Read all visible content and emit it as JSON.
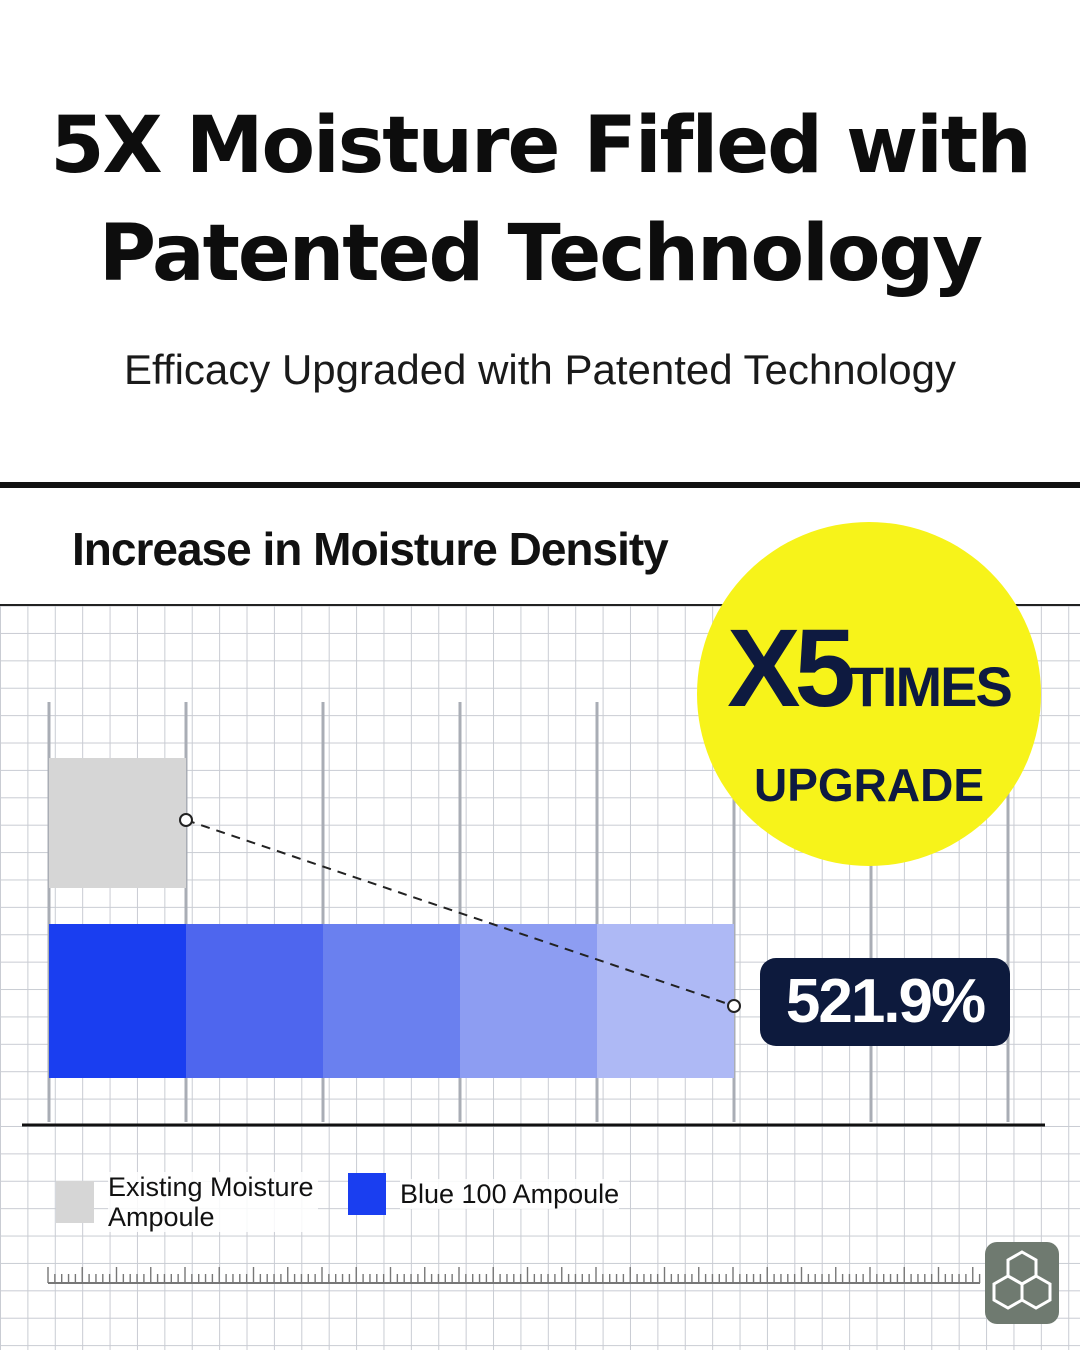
{
  "header": {
    "title_line1": "5X Moisture Fifled with",
    "title_line2": "Patented Technology",
    "subtitle": "Efficacy Upgraded with Patented Technology"
  },
  "badge": {
    "big": "X5",
    "times": "TIMES",
    "upgrade": "UPGRADE",
    "color": "#f7f31a"
  },
  "chart_data": {
    "type": "bar",
    "title": "Increase in Moisture Density",
    "orientation": "horizontal",
    "grid": true,
    "categories": [
      "Existing Moisture Ampoule",
      "Blue 100 Ampoule"
    ],
    "values": [
      1,
      5.219
    ],
    "value_labels": [
      "",
      "521.9%"
    ],
    "value_units": "multiple of existing",
    "xlim": [
      0,
      6
    ],
    "colors": [
      "#d6d6d6",
      "#1a3ef0"
    ],
    "legend": [
      {
        "label": "Existing Moisture Ampoule",
        "color": "#d6d6d6"
      },
      {
        "label": "Blue 100 Ampoule",
        "color": "#1a3ef0"
      }
    ],
    "legend_position": "bottom-left"
  },
  "logo": {
    "icon": "hexagon-molecule-icon"
  }
}
